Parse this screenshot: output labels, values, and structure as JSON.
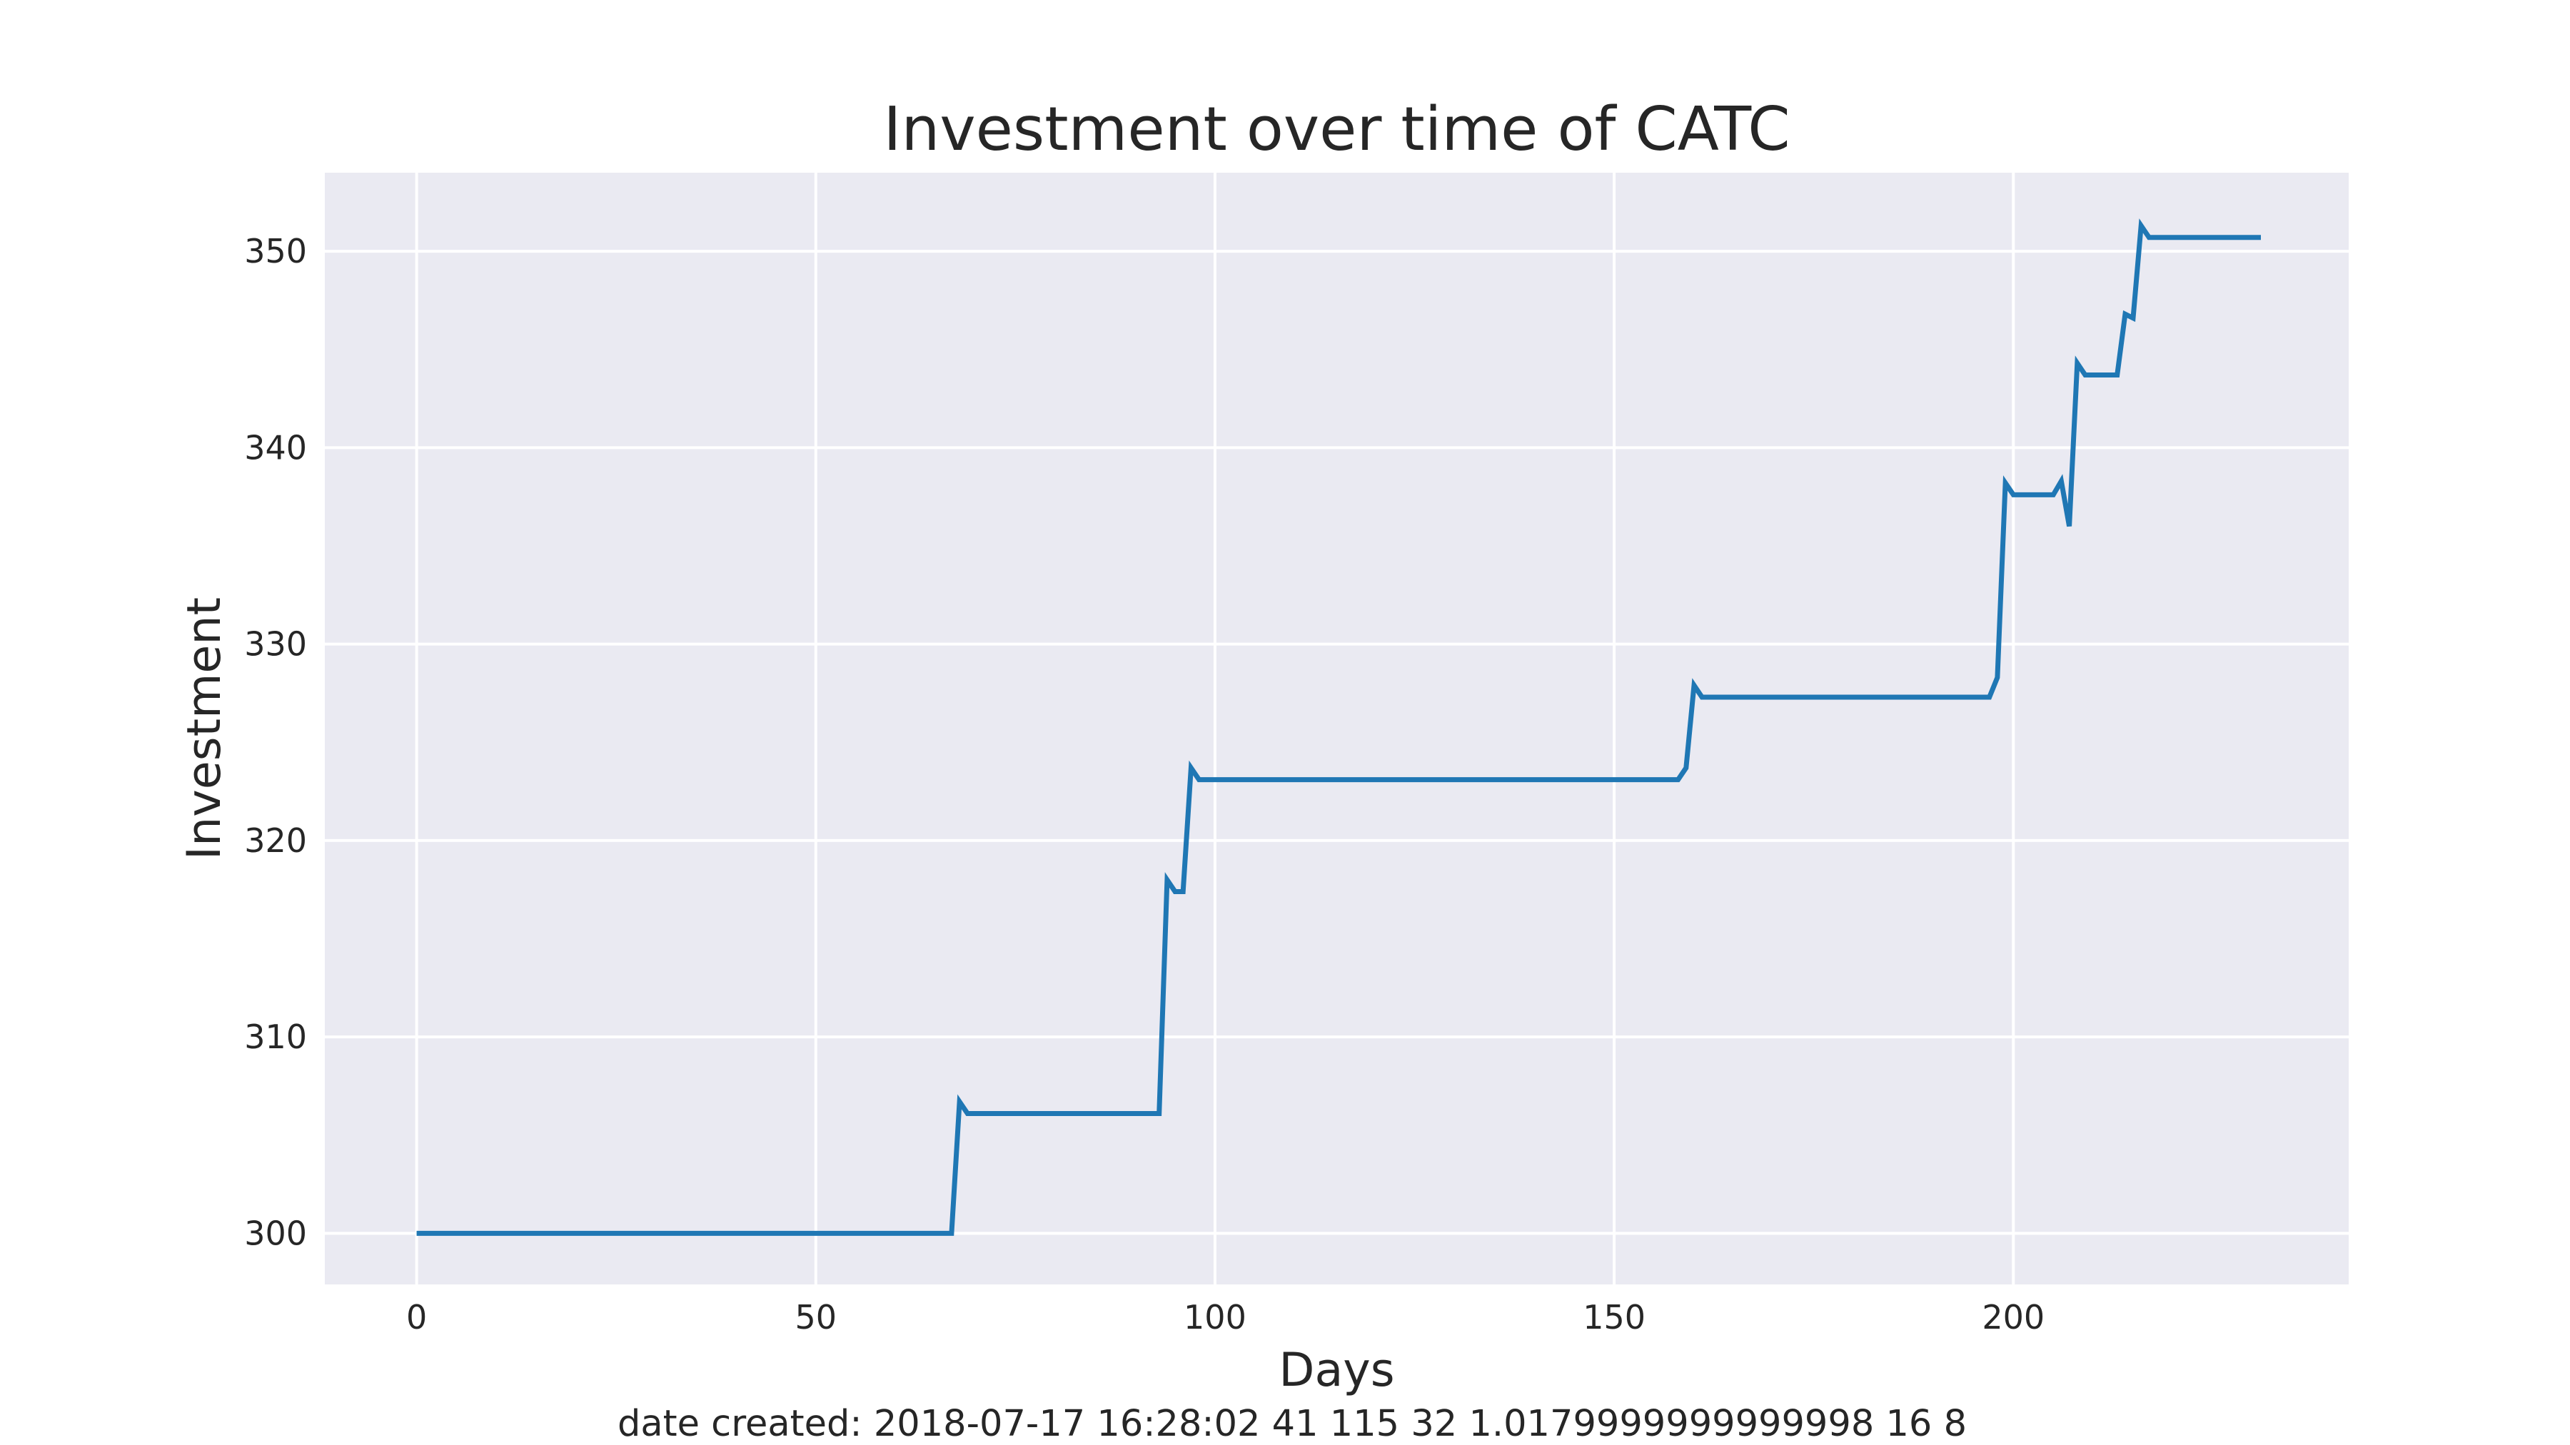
{
  "chart_data": {
    "type": "line",
    "title": "Investment over time of CATC",
    "xlabel": "Days",
    "ylabel": "Investment",
    "footer": "date created: 2018-07-17 16:28:02 41 115 32 1.0179999999999998 16 8",
    "xlim": [
      -11.5,
      242
    ],
    "ylim": [
      297.4,
      354.0
    ],
    "xticks": [
      0,
      50,
      100,
      150,
      200
    ],
    "yticks": [
      300,
      310,
      320,
      330,
      340,
      350
    ],
    "grid": true,
    "colors": {
      "line": "#1f77b4",
      "plot_background": "#eaeaf2",
      "grid": "#ffffff",
      "text": "#262626"
    },
    "series": [
      {
        "x": [
          0,
          67,
          68,
          69,
          93,
          94,
          95,
          96,
          97,
          98,
          158,
          159,
          160,
          161,
          197,
          198,
          199,
          200,
          205,
          206,
          207,
          208,
          209,
          213,
          214,
          215,
          216,
          217,
          218,
          231
        ],
        "values": [
          300.0,
          300.0,
          306.7,
          306.1,
          306.1,
          318.0,
          317.4,
          317.4,
          323.7,
          323.1,
          323.1,
          323.7,
          327.9,
          327.3,
          327.3,
          328.3,
          338.2,
          337.6,
          337.6,
          338.3,
          336.0,
          344.3,
          343.7,
          343.7,
          346.8,
          346.6,
          351.3,
          350.7,
          350.7,
          350.7
        ]
      }
    ]
  }
}
